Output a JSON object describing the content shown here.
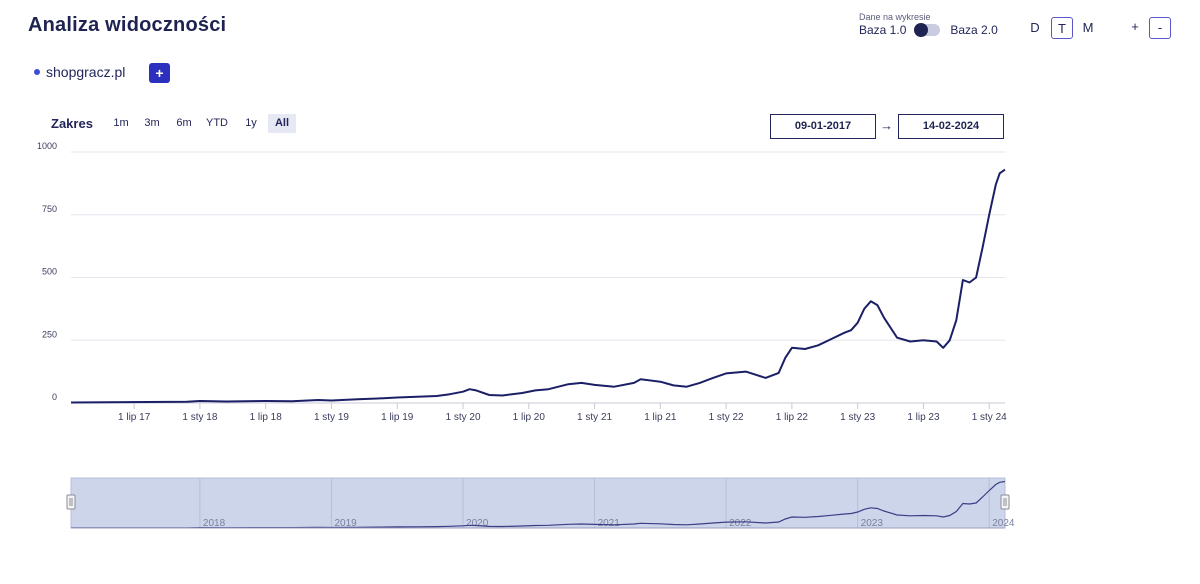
{
  "header": {
    "title": "Analiza widoczności"
  },
  "base_switch": {
    "caption": "Dane na wykresie",
    "left_label": "Baza 1.0",
    "right_label": "Baza 2.0"
  },
  "granularity": {
    "options": [
      "D",
      "T",
      "M"
    ],
    "selected": "T"
  },
  "zoom": {
    "plus": "+",
    "minus": "-"
  },
  "domain": {
    "name": "shopgracz.pl",
    "add_label": "+"
  },
  "range": {
    "label": "Zakres",
    "buttons": [
      "1m",
      "3m",
      "6m",
      "YTD",
      "1y",
      "All"
    ],
    "selected": "All",
    "from": "09-01-2017",
    "to": "14-02-2024",
    "arrow": "→"
  },
  "colors": {
    "line": "#1b1f66",
    "navigator_fill": "#cdd5ea",
    "button": "#2d2fbf",
    "accent": "#5b55c9"
  },
  "chart_data": {
    "type": "line",
    "title": "",
    "xlabel": "",
    "ylabel": "",
    "ylim": [
      0,
      1000
    ],
    "yticks": [
      0,
      250,
      500,
      750,
      1000
    ],
    "xlim": [
      2017.02,
      2024.12
    ],
    "xticks": [
      {
        "t": 2017.5,
        "label": "1 lip 17"
      },
      {
        "t": 2018.0,
        "label": "1 sty 18"
      },
      {
        "t": 2018.5,
        "label": "1 lip 18"
      },
      {
        "t": 2019.0,
        "label": "1 sty 19"
      },
      {
        "t": 2019.5,
        "label": "1 lip 19"
      },
      {
        "t": 2020.0,
        "label": "1 sty 20"
      },
      {
        "t": 2020.5,
        "label": "1 lip 20"
      },
      {
        "t": 2021.0,
        "label": "1 sty 21"
      },
      {
        "t": 2021.5,
        "label": "1 lip 21"
      },
      {
        "t": 2022.0,
        "label": "1 sty 22"
      },
      {
        "t": 2022.5,
        "label": "1 lip 22"
      },
      {
        "t": 2023.0,
        "label": "1 sty 23"
      },
      {
        "t": 2023.5,
        "label": "1 lip 23"
      },
      {
        "t": 2024.0,
        "label": "1 sty 24"
      }
    ],
    "navigator_labels": [
      {
        "t": 2018.0,
        "label": "2018"
      },
      {
        "t": 2019.0,
        "label": "2019"
      },
      {
        "t": 2020.0,
        "label": "2020"
      },
      {
        "t": 2021.0,
        "label": "2021"
      },
      {
        "t": 2022.0,
        "label": "2022"
      },
      {
        "t": 2023.0,
        "label": "2023"
      },
      {
        "t": 2024.0,
        "label": "2024"
      }
    ],
    "series": [
      {
        "name": "shopgracz.pl",
        "x": [
          2017.02,
          2017.3,
          2017.6,
          2017.9,
          2018.0,
          2018.2,
          2018.5,
          2018.7,
          2018.9,
          2019.0,
          2019.2,
          2019.35,
          2019.5,
          2019.65,
          2019.8,
          2019.9,
          2020.0,
          2020.05,
          2020.1,
          2020.2,
          2020.3,
          2020.45,
          2020.55,
          2020.65,
          2020.8,
          2020.9,
          2021.0,
          2021.15,
          2021.3,
          2021.35,
          2021.5,
          2021.6,
          2021.7,
          2021.8,
          2021.9,
          2022.0,
          2022.15,
          2022.3,
          2022.4,
          2022.45,
          2022.5,
          2022.6,
          2022.7,
          2022.8,
          2022.9,
          2022.95,
          2023.0,
          2023.05,
          2023.1,
          2023.15,
          2023.2,
          2023.3,
          2023.4,
          2023.5,
          2023.6,
          2023.65,
          2023.7,
          2023.75,
          2023.8,
          2023.85,
          2023.9,
          2023.95,
          2024.0,
          2024.05,
          2024.08,
          2024.12
        ],
        "values": [
          2,
          3,
          4,
          5,
          8,
          6,
          8,
          7,
          12,
          10,
          15,
          18,
          22,
          25,
          28,
          35,
          45,
          55,
          50,
          32,
          30,
          40,
          50,
          55,
          75,
          80,
          72,
          65,
          80,
          95,
          85,
          70,
          65,
          80,
          100,
          118,
          125,
          100,
          120,
          180,
          220,
          215,
          230,
          255,
          280,
          290,
          320,
          375,
          405,
          390,
          340,
          260,
          245,
          250,
          245,
          220,
          250,
          330,
          490,
          480,
          500,
          620,
          750,
          870,
          915,
          930
        ]
      }
    ]
  }
}
